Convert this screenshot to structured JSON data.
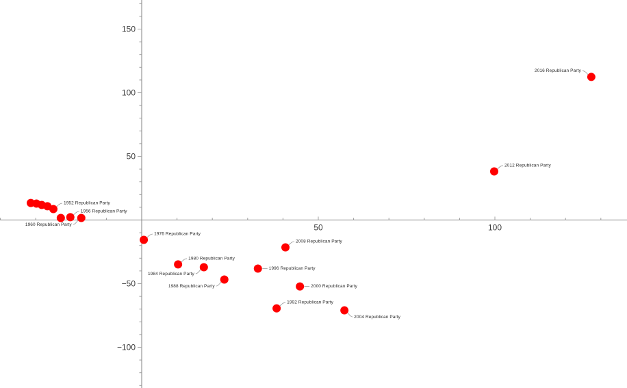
{
  "chart_data": {
    "type": "scatter",
    "title": "",
    "xlabel": "",
    "ylabel": "",
    "grid": false,
    "legend": "none",
    "series_name": "Republican Party",
    "marker": {
      "shape": "circle",
      "color": "#ff0000",
      "radius_px": 6
    },
    "x_axis": {
      "range": [
        -40,
        137
      ],
      "minor_tick_step": 10,
      "major_ticks": [
        {
          "value": 50,
          "label": "50"
        },
        {
          "value": 100,
          "label": "100"
        }
      ]
    },
    "y_axis": {
      "range": [
        -132,
        172
      ],
      "minor_tick_step": 10,
      "major_ticks": [
        {
          "value": 150,
          "label": "150"
        },
        {
          "value": 100,
          "label": "100"
        },
        {
          "value": 50,
          "label": "50"
        },
        {
          "value": -50,
          "label": "−50"
        },
        {
          "value": -100,
          "label": "−100"
        }
      ]
    },
    "points": [
      {
        "x": -31.4,
        "y": 13.4,
        "label": "",
        "label_side": null
      },
      {
        "x": -29.8,
        "y": 12.9,
        "label": "",
        "label_side": null
      },
      {
        "x": -28.3,
        "y": 11.8,
        "label": "",
        "label_side": null
      },
      {
        "x": -26.7,
        "y": 10.8,
        "label": "",
        "label_side": null
      },
      {
        "x": -25.0,
        "y": 8.6,
        "label": "1952 Republican Party",
        "label_side": "ne"
      },
      {
        "x": -22.9,
        "y": 1.6,
        "label": "",
        "label_side": null
      },
      {
        "x": -20.2,
        "y": 2.2,
        "label": "1956 Republican Party",
        "label_side": "ne"
      },
      {
        "x": -17.1,
        "y": 1.6,
        "label": "1960 Republican Party",
        "label_side": "sw"
      },
      {
        "x": 0.6,
        "y": -15.6,
        "label": "1976 Republican Party",
        "label_side": "ne"
      },
      {
        "x": 10.3,
        "y": -34.9,
        "label": "1980 Republican Party",
        "label_side": "ne"
      },
      {
        "x": 17.6,
        "y": -37.1,
        "label": "1984 Republican Party",
        "label_side": "sw"
      },
      {
        "x": 23.4,
        "y": -46.8,
        "label": "1988 Republican Party",
        "label_side": "sw"
      },
      {
        "x": 38.2,
        "y": -69.4,
        "label": "1992 Republican Party",
        "label_side": "ne"
      },
      {
        "x": 32.9,
        "y": -38.2,
        "label": "1996 Republican Party",
        "label_side": "e"
      },
      {
        "x": 44.8,
        "y": -52.2,
        "label": "2000 Republican Party",
        "label_side": "e"
      },
      {
        "x": 57.4,
        "y": -71.0,
        "label": "2004 Republican Party",
        "label_side": "se"
      },
      {
        "x": 40.7,
        "y": -21.5,
        "label": "2008 Republican Party",
        "label_side": "ne"
      },
      {
        "x": 99.8,
        "y": 38.2,
        "label": "2012 Republican Party",
        "label_side": "ne"
      },
      {
        "x": 127.3,
        "y": 112.4,
        "label": "2016 Republican Party",
        "label_side": "nw"
      }
    ]
  },
  "colors": {
    "background": "#ffffff",
    "marker": "#ff0000",
    "axis_line": "#808080",
    "major_tick": "#a6a6a6",
    "minor_tick": "#999999",
    "tick_label": "#3d3d3d",
    "callout_line": "#9a9a9a",
    "callout_text": "#2b2b2b"
  }
}
